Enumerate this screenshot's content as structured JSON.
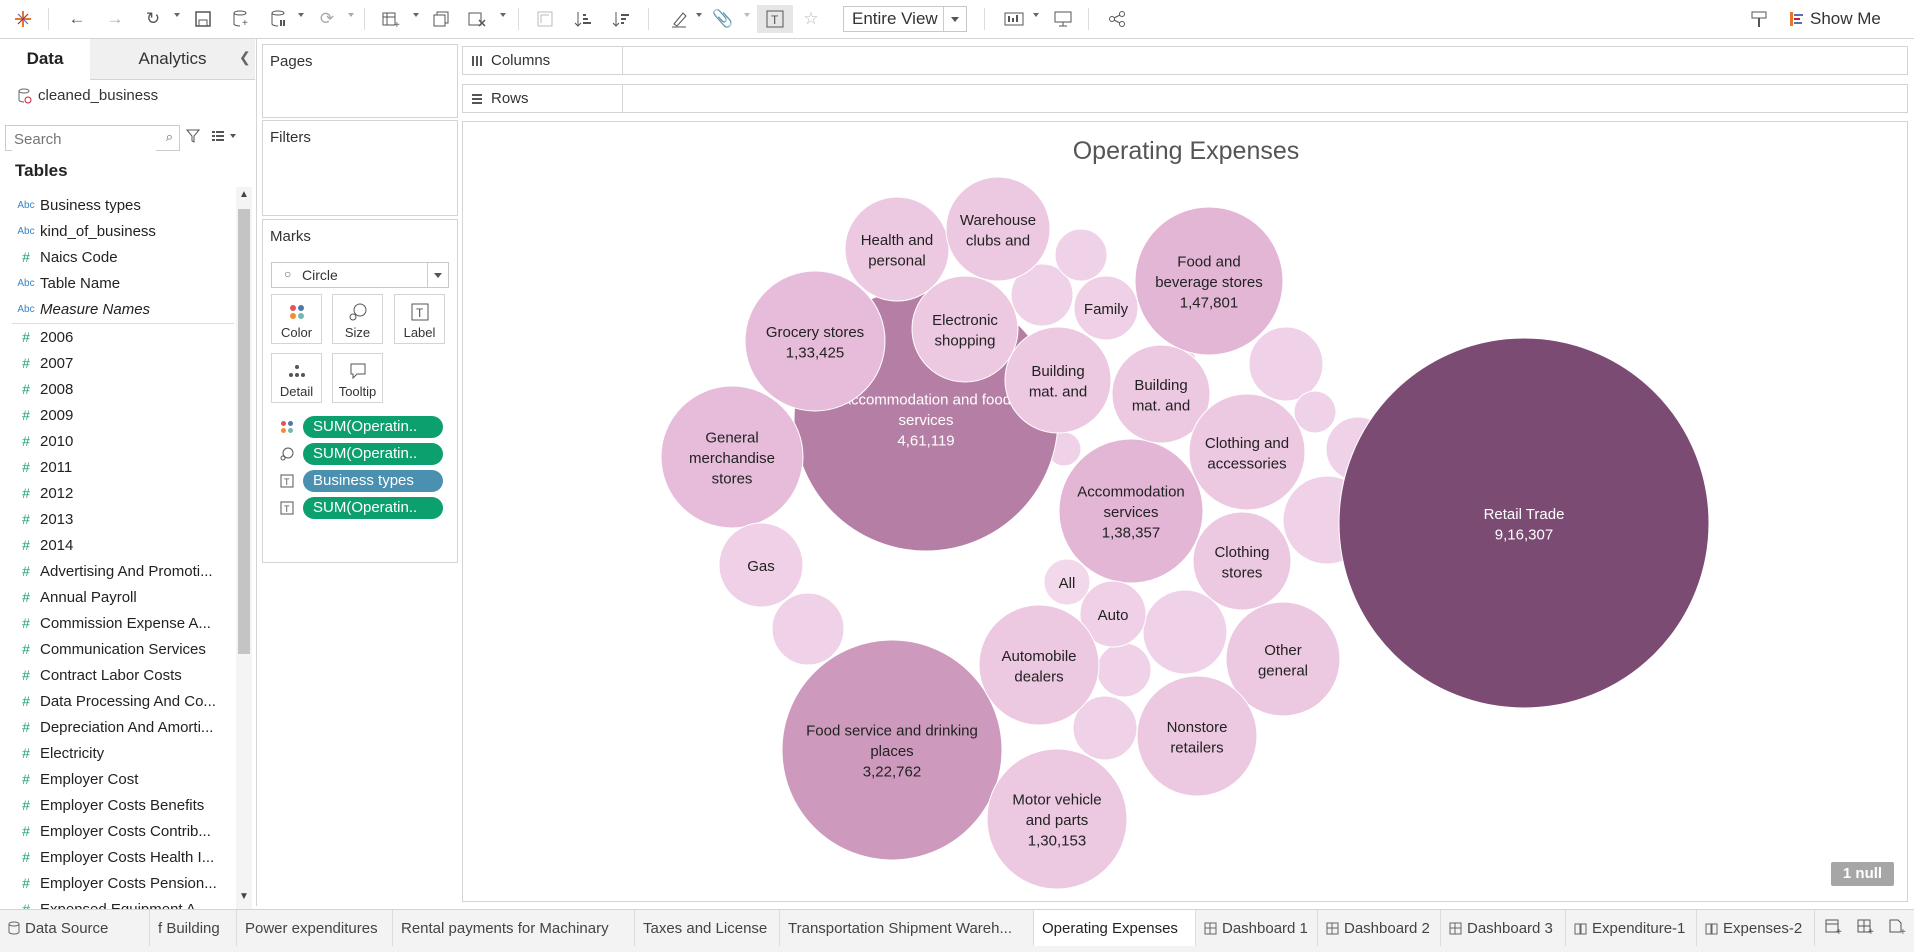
{
  "toolbar": {
    "view_mode": "Entire View",
    "show_me": "Show Me"
  },
  "data_pane": {
    "tab_data": "Data",
    "tab_analytics": "Analytics",
    "datasource": "cleaned_business",
    "search_placeholder": "Search",
    "tables_title": "Tables",
    "fields": [
      {
        "type": "Abc",
        "name": "Business types"
      },
      {
        "type": "Abc",
        "name": "kind_of_business"
      },
      {
        "type": "#",
        "name": "Naics Code"
      },
      {
        "type": "Abc",
        "name": "Table Name"
      },
      {
        "type": "Abc",
        "name": "Measure Names",
        "italic": true
      },
      {
        "type": "#",
        "name": "2006"
      },
      {
        "type": "#",
        "name": "2007"
      },
      {
        "type": "#",
        "name": "2008"
      },
      {
        "type": "#",
        "name": "2009"
      },
      {
        "type": "#",
        "name": "2010"
      },
      {
        "type": "#",
        "name": "2011"
      },
      {
        "type": "#",
        "name": "2012"
      },
      {
        "type": "#",
        "name": "2013"
      },
      {
        "type": "#",
        "name": "2014"
      },
      {
        "type": "#",
        "name": "Advertising And Promoti..."
      },
      {
        "type": "#",
        "name": "Annual Payroll"
      },
      {
        "type": "#",
        "name": "Commission Expense A..."
      },
      {
        "type": "#",
        "name": "Communication Services"
      },
      {
        "type": "#",
        "name": "Contract Labor Costs"
      },
      {
        "type": "#",
        "name": "Data Processing And Co..."
      },
      {
        "type": "#",
        "name": "Depreciation And Amorti..."
      },
      {
        "type": "#",
        "name": "Electricity"
      },
      {
        "type": "#",
        "name": "Employer Cost"
      },
      {
        "type": "#",
        "name": "Employer Costs Benefits"
      },
      {
        "type": "#",
        "name": "Employer Costs Contrib..."
      },
      {
        "type": "#",
        "name": "Employer Costs Health I..."
      },
      {
        "type": "#",
        "name": "Employer Costs Pension..."
      },
      {
        "type": "#",
        "name": "Expensed Equipment A..."
      }
    ]
  },
  "shelves": {
    "pages": "Pages",
    "filters": "Filters",
    "marks": "Marks",
    "mark_type": "Circle",
    "mark_buttons": [
      "Color",
      "Size",
      "Label",
      "Detail",
      "Tooltip"
    ],
    "pills": [
      {
        "icon": "color-dots-icon",
        "label": "SUM(Operatin..",
        "kind": "green"
      },
      {
        "icon": "size-icon",
        "label": "SUM(Operatin..",
        "kind": "green"
      },
      {
        "icon": "label-icon",
        "label": "Business types",
        "kind": "blue"
      },
      {
        "icon": "label-icon",
        "label": "SUM(Operatin..",
        "kind": "green"
      }
    ],
    "columns": "Columns",
    "rows": "Rows"
  },
  "viz": {
    "title": "Operating Expenses",
    "null_badge": "1 null"
  },
  "chart_data": {
    "type": "packed-bubble",
    "title": "Operating Expenses",
    "bubbles": [
      {
        "label": "Retail Trade",
        "value_label": "9,16,307"
      },
      {
        "label": "Accommodation and food services",
        "value_label": "4,61,119"
      },
      {
        "label": "Food service and drinking places",
        "value_label": "3,22,762"
      },
      {
        "label": "Food and beverage stores",
        "value_label": "1,47,801"
      },
      {
        "label": "Accommodation services",
        "value_label": "1,38,357"
      },
      {
        "label": "Grocery stores",
        "value_label": "1,33,425"
      },
      {
        "label": "Motor vehicle and parts",
        "value_label": "1,30,153"
      },
      {
        "label": "General merchandise stores",
        "value_label": ""
      },
      {
        "label": "Health and personal",
        "value_label": ""
      },
      {
        "label": "Warehouse clubs and",
        "value_label": ""
      },
      {
        "label": "Electronic shopping",
        "value_label": ""
      },
      {
        "label": "Family",
        "value_label": ""
      },
      {
        "label": "Building mat. and",
        "value_label": ""
      },
      {
        "label": "Building mat. and",
        "value_label": ""
      },
      {
        "label": "Clothing and accessories",
        "value_label": ""
      },
      {
        "label": "Clothing stores",
        "value_label": ""
      },
      {
        "label": "Gas",
        "value_label": ""
      },
      {
        "label": "All",
        "value_label": ""
      },
      {
        "label": "Auto",
        "value_label": ""
      },
      {
        "label": "Automobile dealers",
        "value_label": ""
      },
      {
        "label": "Other general",
        "value_label": ""
      },
      {
        "label": "Nonstore retailers",
        "value_label": ""
      }
    ],
    "color_scale": [
      "#ecc8e1",
      "#7b4b74"
    ]
  },
  "sheet_tabs": [
    {
      "label": "Data Source",
      "icon": "datasource-icon"
    },
    {
      "label": "f Building"
    },
    {
      "label": "Power expenditures"
    },
    {
      "label": "Rental payments for Machinary"
    },
    {
      "label": "Taxes and License"
    },
    {
      "label": "Transportation Shipment Wareh..."
    },
    {
      "label": "Operating Expenses",
      "active": true
    },
    {
      "label": "Dashboard 1",
      "icon": "dashboard-icon"
    },
    {
      "label": "Dashboard 2",
      "icon": "dashboard-icon"
    },
    {
      "label": "Dashboard 3",
      "icon": "dashboard-icon"
    },
    {
      "label": "Expenditure-1",
      "icon": "story-icon"
    },
    {
      "label": "Expenses-2",
      "icon": "story-icon"
    }
  ]
}
